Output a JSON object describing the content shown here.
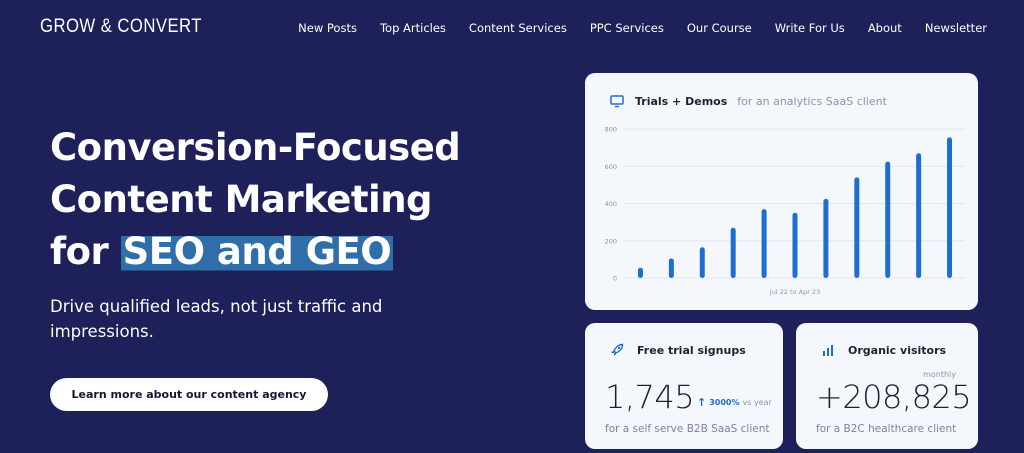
{
  "brand": {
    "logo": "GROW & CONVERT"
  },
  "nav": {
    "items": [
      "New Posts",
      "Top Articles",
      "Content Services",
      "PPC Services",
      "Our Course",
      "Write For Us",
      "About",
      "Newsletter"
    ]
  },
  "hero": {
    "title_line1": "Conversion-Focused",
    "title_line2": "Content Marketing",
    "title_line3_prefix": "for ",
    "title_highlight": "SEO and GEO",
    "subtitle": "Drive qualified leads, not just traffic and impressions.",
    "cta_label": "Learn more about our content agency"
  },
  "chart_card": {
    "title": "Trials + Demos",
    "subtitle": "for an analytics SaaS client",
    "icon": "monitor-icon"
  },
  "chart_data": {
    "type": "bar",
    "title": "Trials + Demos",
    "xlabel": "Jul 22 to Apr 23",
    "ylabel": "",
    "ylim": [
      0,
      800
    ],
    "yticks": [
      0,
      200,
      400,
      600,
      800
    ],
    "grid": true,
    "values": [
      55,
      105,
      165,
      270,
      370,
      350,
      425,
      540,
      625,
      670,
      755
    ],
    "bar_color": "#1f6dd0"
  },
  "stats": [
    {
      "title": "Free trial signups",
      "icon": "rocket-icon",
      "value": "1,745",
      "growth_pct": "3000%",
      "growth_suffix": "vs year",
      "caption": "for a self serve B2B SaaS client"
    },
    {
      "title": "Organic visitors",
      "icon": "bar-chart-icon",
      "value": "+208,825",
      "period": "monthly",
      "caption": "for a B2C healthcare client"
    }
  ],
  "colors": {
    "background": "#1e2159",
    "highlight": "#2f6ea8",
    "accent": "#1f6dd0",
    "card": "#f4f8fd"
  }
}
